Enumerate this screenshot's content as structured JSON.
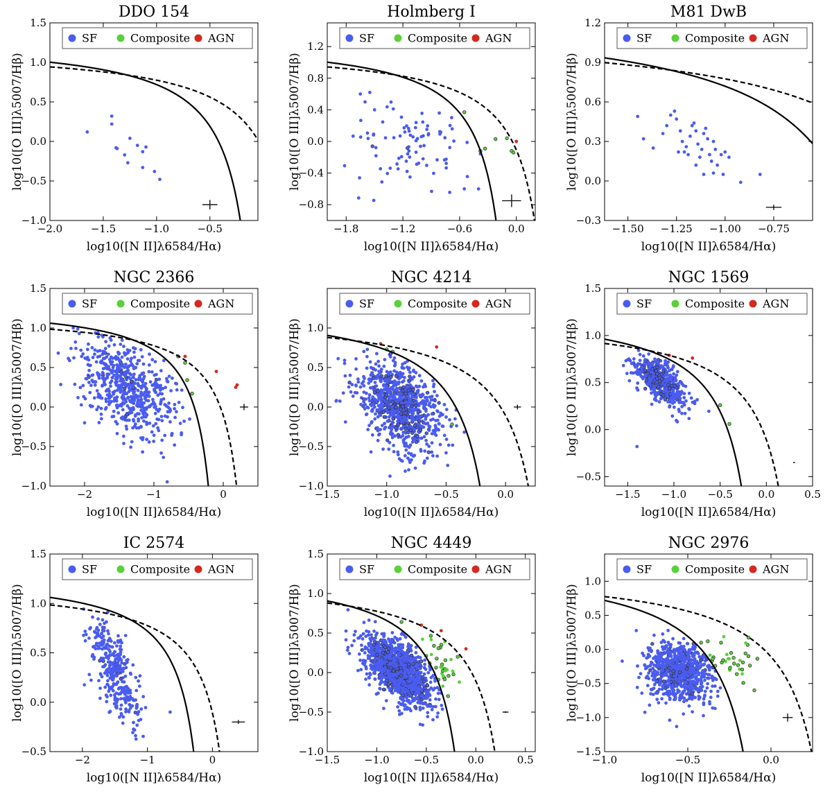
{
  "colors": {
    "sf": "#4a5cf0",
    "composite": "#59d13a",
    "agn": "#d5291d",
    "ring": "#333333"
  },
  "legend": {
    "sf": "SF",
    "composite": "Composite",
    "agn": "AGN"
  },
  "chart_data": [
    {
      "type": "scatter",
      "title": "DDO 154",
      "xlabel": "log10([N II]λ6584/Hα)",
      "ylabel": "log10([O III]λ5007/Hβ)",
      "xlim": [
        -2.0,
        -0.05
      ],
      "ylim": [
        -1.0,
        1.5
      ],
      "xticks": [
        -2.0,
        -1.5,
        -1.0,
        -0.5
      ],
      "xticklabels": [
        "−2.0",
        "−1.5",
        "−1.0",
        "−0.5"
      ],
      "yticks": [
        -1.0,
        -0.5,
        0.0,
        0.5,
        1.0,
        1.5
      ],
      "yticklabels": [
        "−1.0",
        "−0.5",
        "0.0",
        "0.5",
        "1.0",
        "1.5"
      ],
      "legend_position": "top",
      "error_bar": {
        "x": -0.5,
        "y": -0.8,
        "dx": 0.07,
        "dy": 0.06
      },
      "n_sf": 0,
      "n_comp": 0,
      "n_agn": 0,
      "seed": 11,
      "sf_cluster": {
        "cx": -1.25,
        "cy": -0.1,
        "sx": 0.2,
        "sy": 0.2,
        "rot": -0.5,
        "ringfrac": 0.0
      },
      "points": [
        [
          -1.65,
          0.12
        ],
        [
          -1.42,
          0.32
        ],
        [
          -1.42,
          0.22
        ],
        [
          -1.38,
          -0.08
        ],
        [
          -1.3,
          -0.17
        ],
        [
          -1.27,
          -0.27
        ],
        [
          -1.25,
          0.04
        ],
        [
          -1.18,
          -0.05
        ],
        [
          -1.13,
          -0.13
        ],
        [
          -1.1,
          -0.07
        ],
        [
          -1.13,
          -0.33
        ],
        [
          -1.02,
          -0.38
        ],
        [
          -0.97,
          -0.48
        ],
        [
          -1.37,
          -0.09
        ]
      ],
      "comp_points": [],
      "agn_points": []
    },
    {
      "type": "scatter",
      "title": "Holmberg I",
      "xlabel": "log10([N II]λ6584/Hα)",
      "ylabel": "log10([O III]λ5007/Hβ)",
      "xlim": [
        -2.0,
        0.2
      ],
      "ylim": [
        -1.0,
        1.5
      ],
      "xticks": [
        -1.8,
        -1.2,
        -0.6,
        0.0
      ],
      "xticklabels": [
        "−1.8",
        "−1.2",
        "−0.6",
        "0.0"
      ],
      "yticks": [
        -0.8,
        -0.4,
        0.0,
        0.4,
        0.8,
        1.2
      ],
      "yticklabels": [
        "−0.8",
        "−0.4",
        "0.0",
        "0.4",
        "0.8",
        "1.2"
      ],
      "legend_position": "top",
      "error_bar": {
        "x": -0.05,
        "y": -0.75,
        "dx": 0.1,
        "dy": 0.08
      },
      "n_sf": 90,
      "n_comp": 0,
      "n_agn": 0,
      "seed": 23,
      "sf_cluster": {
        "cx": -1.05,
        "cy": -0.05,
        "sx": 0.35,
        "sy": 0.28,
        "rot": 0.0,
        "ringfrac": 0.03
      },
      "points": [
        [
          -1.65,
          0.6
        ],
        [
          -1.55,
          0.62
        ],
        [
          -1.6,
          0.5
        ],
        [
          -1.5,
          0.4
        ],
        [
          -0.55,
          -0.6
        ],
        [
          -0.4,
          -0.6
        ]
      ],
      "comp_points": [
        [
          -0.55,
          0.37
        ],
        [
          -0.38,
          -0.12
        ],
        [
          -0.33,
          -0.09
        ],
        [
          -0.22,
          0.03
        ],
        [
          -0.1,
          0.04
        ],
        [
          -0.05,
          -0.12
        ],
        [
          -0.03,
          -0.14
        ]
      ],
      "agn_points": [
        [
          0.0,
          0.0
        ]
      ]
    },
    {
      "type": "scatter",
      "title": "M81 DwB",
      "xlabel": "log10([N II]λ6584/Hα)",
      "ylabel": "log10([O III]λ5007/Hβ)",
      "xlim": [
        -1.62,
        -0.55
      ],
      "ylim": [
        -0.3,
        1.2
      ],
      "xticks": [
        -1.5,
        -1.25,
        -1.0,
        -0.75
      ],
      "xticklabels": [
        "−1.50",
        "−1.25",
        "−1.00",
        "−0.75"
      ],
      "yticks": [
        -0.3,
        0.0,
        0.3,
        0.6,
        0.9,
        1.2
      ],
      "yticklabels": [
        "−0.3",
        "0.0",
        "0.3",
        "0.6",
        "0.9",
        "1.2"
      ],
      "legend_position": "top",
      "error_bar": {
        "x": -0.75,
        "y": -0.2,
        "dx": 0.04,
        "dy": 0.02
      },
      "n_sf": 0,
      "n_comp": 0,
      "n_agn": 0,
      "seed": 5,
      "sf_cluster": {
        "cx": -1.15,
        "cy": 0.2,
        "sx": 0.1,
        "sy": 0.1,
        "rot": -0.5,
        "ringfrac": 0.0
      },
      "points": [
        [
          -1.45,
          0.49
        ],
        [
          -1.42,
          0.32
        ],
        [
          -1.37,
          0.25
        ],
        [
          -1.3,
          0.42
        ],
        [
          -1.28,
          0.5
        ],
        [
          -1.26,
          0.53
        ],
        [
          -1.25,
          0.47
        ],
        [
          -1.23,
          0.38
        ],
        [
          -1.22,
          0.3
        ],
        [
          -1.21,
          0.22
        ],
        [
          -1.2,
          0.26
        ],
        [
          -1.18,
          0.34
        ],
        [
          -1.17,
          0.42
        ],
        [
          -1.16,
          0.44
        ],
        [
          -1.15,
          0.38
        ],
        [
          -1.14,
          0.28
        ],
        [
          -1.13,
          0.18
        ],
        [
          -1.12,
          0.24
        ],
        [
          -1.11,
          0.36
        ],
        [
          -1.1,
          0.4
        ],
        [
          -1.09,
          0.32
        ],
        [
          -1.08,
          0.2
        ],
        [
          -1.07,
          0.15
        ],
        [
          -1.06,
          0.3
        ],
        [
          -1.05,
          0.24
        ],
        [
          -1.04,
          0.12
        ],
        [
          -1.02,
          0.2
        ],
        [
          -1.01,
          0.05
        ],
        [
          -1.0,
          0.22
        ],
        [
          -0.98,
          0.18
        ],
        [
          -1.15,
          0.12
        ],
        [
          -1.11,
          0.05
        ],
        [
          -1.06,
          0.06
        ],
        [
          -0.92,
          -0.01
        ],
        [
          -0.82,
          0.05
        ],
        [
          -1.19,
          0.2
        ],
        [
          -1.24,
          0.22
        ],
        [
          -1.32,
          0.36
        ]
      ],
      "comp_points": [],
      "agn_points": []
    },
    {
      "type": "scatter",
      "title": "NGC 2366",
      "xlabel": "log10([N II]λ6584/Hα)",
      "ylabel": "log10([O III]λ5007/Hβ)",
      "xlim": [
        -2.5,
        0.5
      ],
      "ylim": [
        -1.0,
        1.5
      ],
      "xticks": [
        -2,
        -1,
        0
      ],
      "xticklabels": [
        "−2",
        "−1",
        "0"
      ],
      "yticks": [
        -1.0,
        -0.5,
        0.0,
        0.5,
        1.0,
        1.5
      ],
      "yticklabels": [
        "−1.0",
        "−0.5",
        "0.0",
        "0.5",
        "1.0",
        "1.5"
      ],
      "legend_position": "top",
      "error_bar": {
        "x": 0.3,
        "y": 0.0,
        "dx": 0.06,
        "dy": 0.04
      },
      "n_sf": 620,
      "n_comp": 0,
      "n_agn": 0,
      "seed": 41,
      "sf_cluster": {
        "cx": -1.4,
        "cy": 0.25,
        "sx": 0.35,
        "sy": 0.28,
        "rot": -0.5,
        "ringfrac": 0.05
      },
      "points": [],
      "comp_points": [
        [
          -0.65,
          0.64
        ],
        [
          -0.55,
          0.56
        ],
        [
          -0.52,
          0.34
        ],
        [
          -0.45,
          0.17
        ]
      ],
      "agn_points": [
        [
          -0.55,
          0.64
        ],
        [
          -0.1,
          0.45
        ],
        [
          0.18,
          0.25
        ],
        [
          0.2,
          0.28
        ]
      ]
    },
    {
      "type": "scatter",
      "title": "NGC 4214",
      "xlabel": "log10([N II]λ6584/Hα)",
      "ylabel": "log10([O III]λ5007/Hβ)",
      "xlim": [
        -1.5,
        0.25
      ],
      "ylim": [
        -1.0,
        1.5
      ],
      "xticks": [
        -1.5,
        -1.0,
        -0.5,
        0.0
      ],
      "xticklabels": [
        "−1.5",
        "−1.0",
        "−0.5",
        "0.0"
      ],
      "yticks": [
        -1.0,
        -0.5,
        0.0,
        0.5,
        1.0
      ],
      "yticklabels": [
        "−1.0",
        "−0.5",
        "0.0",
        "0.5",
        "1.0"
      ],
      "legend_position": "top",
      "error_bar": {
        "x": 0.1,
        "y": 0.0,
        "dx": 0.03,
        "dy": 0.03
      },
      "n_sf": 900,
      "n_comp": 0,
      "n_agn": 0,
      "seed": 77,
      "sf_cluster": {
        "cx": -0.88,
        "cy": 0.02,
        "sx": 0.18,
        "sy": 0.25,
        "rot": -0.6,
        "ringfrac": 0.45
      },
      "points": [],
      "comp_points": [
        [
          -1.0,
          0.73
        ],
        [
          -0.95,
          0.7
        ],
        [
          -0.45,
          -0.22
        ]
      ],
      "agn_points": [
        [
          -1.05,
          0.8
        ],
        [
          -0.58,
          0.76
        ]
      ]
    },
    {
      "type": "scatter",
      "title": "NGC 1569",
      "xlabel": "log10([N II]λ6584/Hα)",
      "ylabel": "log10([O III]λ5007/Hβ)",
      "xlim": [
        -1.75,
        0.5
      ],
      "ylim": [
        -0.6,
        1.5
      ],
      "xticks": [
        -1.5,
        -1.0,
        -0.5,
        0.0,
        0.5
      ],
      "xticklabels": [
        "−1.5",
        "−1.0",
        "−0.5",
        "0.0",
        "0.5"
      ],
      "yticks": [
        -0.5,
        0.0,
        0.5,
        1.0,
        1.5
      ],
      "yticklabels": [
        "−0.5",
        "0.0",
        "0.5",
        "1.0",
        "1.5"
      ],
      "legend_position": "top",
      "error_bar": {
        "x": 0.3,
        "y": -0.35,
        "dx": 0.01,
        "dy": 0.005
      },
      "n_sf": 520,
      "n_comp": 0,
      "n_agn": 0,
      "seed": 99,
      "sf_cluster": {
        "cx": -1.15,
        "cy": 0.52,
        "sx": 0.14,
        "sy": 0.1,
        "rot": -0.6,
        "ringfrac": 0.45
      },
      "points": [
        [
          -1.4,
          -0.18
        ]
      ],
      "comp_points": [
        [
          -0.5,
          0.26
        ],
        [
          -0.4,
          0.06
        ]
      ],
      "agn_points": [
        [
          -1.05,
          0.79
        ],
        [
          -0.8,
          0.76
        ]
      ]
    },
    {
      "type": "scatter",
      "title": "IC 2574",
      "xlabel": "log10([N II]λ6584/Hα)",
      "ylabel": "log10([O III]λ5007/Hβ)",
      "xlim": [
        -2.5,
        0.7
      ],
      "ylim": [
        -0.5,
        1.5
      ],
      "xticks": [
        -2,
        -1,
        0
      ],
      "xticklabels": [
        "−2",
        "−1",
        "0"
      ],
      "yticks": [
        -0.5,
        0.0,
        0.5,
        1.0,
        1.5
      ],
      "yticklabels": [
        "−0.5",
        "0.0",
        "0.5",
        "1.0",
        "1.5"
      ],
      "legend_position": "top",
      "error_bar": {
        "x": 0.4,
        "y": -0.2,
        "dx": 0.1,
        "dy": 0.02
      },
      "n_sf": 330,
      "n_comp": 0,
      "n_agn": 0,
      "seed": 131,
      "sf_cluster": {
        "cx": -1.5,
        "cy": 0.3,
        "sx": 0.2,
        "sy": 0.2,
        "rot": -1.0,
        "ringfrac": 0.05
      },
      "points": [
        [
          -0.65,
          -0.1
        ]
      ],
      "comp_points": [],
      "agn_points": []
    },
    {
      "type": "scatter",
      "title": "NGC 4449",
      "xlabel": "log10([N II]λ6584/Hα)",
      "ylabel": "log10([O III]λ5007/Hβ)",
      "xlim": [
        -1.5,
        0.6
      ],
      "ylim": [
        -1.0,
        1.5
      ],
      "xticks": [
        -1.5,
        -1.0,
        -0.5,
        0.0,
        0.5
      ],
      "xticklabels": [
        "−1.5",
        "−1.0",
        "−0.5",
        "0.0",
        "0.5"
      ],
      "yticks": [
        -1.0,
        -0.5,
        0.0,
        0.5,
        1.0,
        1.5
      ],
      "yticklabels": [
        "−1.0",
        "−0.5",
        "0.0",
        "0.5",
        "1.0",
        "1.5"
      ],
      "legend_position": "top",
      "error_bar": {
        "x": 0.3,
        "y": -0.5,
        "dx": 0.03,
        "dy": 0.01
      },
      "n_sf": 1300,
      "n_comp": 60,
      "n_agn": 0,
      "seed": 171,
      "sf_cluster": {
        "cx": -0.78,
        "cy": 0.02,
        "sx": 0.17,
        "sy": 0.17,
        "rot": -0.7,
        "ringfrac": 0.45
      },
      "comp_cluster": {
        "cx": -0.4,
        "cy": 0.05,
        "sx": 0.1,
        "sy": 0.22
      },
      "points": [],
      "comp_points": [
        [
          -0.75,
          0.64
        ]
      ],
      "agn_points": [
        [
          -0.55,
          0.6
        ],
        [
          -0.35,
          0.53
        ],
        [
          -0.1,
          0.3
        ]
      ]
    },
    {
      "type": "scatter",
      "title": "NGC 2976",
      "xlabel": "log10([N II]λ6584/Hα)",
      "ylabel": "log10([O III]λ5007/Hβ)",
      "xlim": [
        -1.0,
        0.25
      ],
      "ylim": [
        -1.5,
        1.4
      ],
      "xticks": [
        -1.0,
        -0.5,
        0.0
      ],
      "xticklabels": [
        "−1.0",
        "−0.5",
        "0.0"
      ],
      "yticks": [
        -1.5,
        -1.0,
        -0.5,
        0.0,
        0.5,
        1.0
      ],
      "yticklabels": [
        "−1.5",
        "−1.0",
        "−0.5",
        "0.0",
        "0.5",
        "1.0"
      ],
      "legend_position": "top",
      "error_bar": {
        "x": 0.1,
        "y": -1.0,
        "dx": 0.03,
        "dy": 0.06
      },
      "n_sf": 850,
      "n_comp": 40,
      "n_agn": 0,
      "seed": 211,
      "sf_cluster": {
        "cx": -0.55,
        "cy": -0.32,
        "sx": 0.1,
        "sy": 0.22,
        "rot": -0.3,
        "ringfrac": 0.3
      },
      "comp_cluster": {
        "cx": -0.22,
        "cy": -0.2,
        "sx": 0.08,
        "sy": 0.2
      },
      "points": [],
      "comp_points": [
        [
          -0.42,
          0.1
        ],
        [
          -0.38,
          0.12
        ],
        [
          -0.3,
          0.1
        ],
        [
          -0.1,
          -0.6
        ]
      ],
      "agn_points": []
    }
  ]
}
